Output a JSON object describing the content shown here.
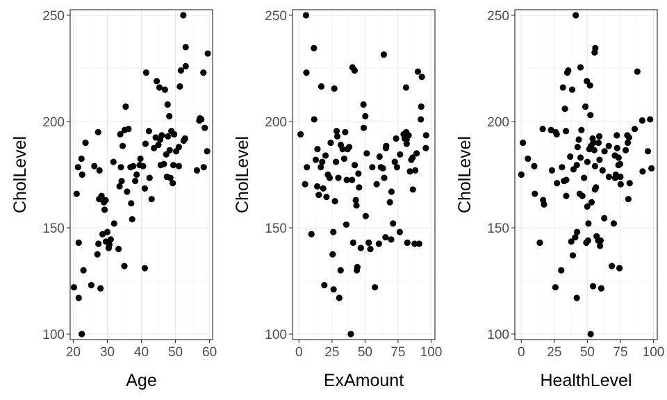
{
  "chart_data": [
    {
      "type": "scatter",
      "xlabel": "Age",
      "ylabel": "CholLevel",
      "xlim": [
        19.1,
        60.9
      ],
      "ylim": [
        97.4,
        252.6
      ],
      "xticks": [
        "20",
        "30",
        "40",
        "50",
        "60"
      ],
      "yticks": [
        "100",
        "150",
        "200",
        "250"
      ],
      "grid": true,
      "points": [
        [
          20.2,
          122.0
        ],
        [
          21.6,
          117.0
        ],
        [
          21.0,
          166.0
        ],
        [
          21.4,
          178.5
        ],
        [
          21.6,
          143.0
        ],
        [
          22.5,
          100.0
        ],
        [
          22.4,
          182.5
        ],
        [
          22.6,
          175.0
        ],
        [
          23.0,
          130.0
        ],
        [
          23.6,
          190.0
        ],
        [
          25.3,
          123.0
        ],
        [
          26.2,
          179.0
        ],
        [
          27.1,
          137.5
        ],
        [
          27.4,
          142.5
        ],
        [
          27.6,
          163.5
        ],
        [
          27.3,
          195.0
        ],
        [
          27.7,
          177.0
        ],
        [
          28.0,
          121.5
        ],
        [
          28.3,
          165.0
        ],
        [
          28.6,
          147.0
        ],
        [
          29.0,
          162.0
        ],
        [
          29.2,
          158.5
        ],
        [
          29.5,
          163.0
        ],
        [
          29.6,
          143.5
        ],
        [
          30.0,
          148.0
        ],
        [
          30.4,
          140.5
        ],
        [
          30.6,
          142.0
        ],
        [
          31.0,
          144.5
        ],
        [
          31.8,
          181.0
        ],
        [
          32.0,
          152.0
        ],
        [
          33.3,
          140.0
        ],
        [
          33.8,
          194.0
        ],
        [
          33.6,
          169.5
        ],
        [
          34.0,
          178.5
        ],
        [
          34.2,
          172.0
        ],
        [
          34.5,
          188.5
        ],
        [
          35.0,
          132.0
        ],
        [
          35.1,
          196.0
        ],
        [
          35.4,
          207.0
        ],
        [
          35.8,
          167.0
        ],
        [
          36.2,
          196.5
        ],
        [
          36.8,
          178.5
        ],
        [
          37.0,
          161.5
        ],
        [
          37.3,
          154.0
        ],
        [
          37.6,
          179.0
        ],
        [
          38.2,
          172.0
        ],
        [
          38.6,
          175.0
        ],
        [
          39.5,
          179.5
        ],
        [
          39.7,
          182.5
        ],
        [
          40.5,
          179.0
        ],
        [
          41.0,
          131.0
        ],
        [
          41.0,
          168.5
        ],
        [
          41.2,
          189.5
        ],
        [
          41.4,
          223.0
        ],
        [
          42.4,
          173.5
        ],
        [
          42.2,
          195.5
        ],
        [
          43.0,
          163.5
        ],
        [
          43.7,
          187.5
        ],
        [
          44.2,
          192.5
        ],
        [
          44.5,
          219.0
        ],
        [
          45.0,
          189.0
        ],
        [
          45.3,
          216.0
        ],
        [
          45.5,
          191.5
        ],
        [
          45.7,
          179.5
        ],
        [
          46.0,
          193.5
        ],
        [
          46.6,
          180.0
        ],
        [
          46.9,
          215.0
        ],
        [
          47.3,
          184.5
        ],
        [
          47.5,
          174.0
        ],
        [
          47.7,
          208.0
        ],
        [
          47.8,
          193.0
        ],
        [
          48.2,
          202.5
        ],
        [
          48.3,
          186.5
        ],
        [
          48.5,
          173.5
        ],
        [
          48.8,
          195.5
        ],
        [
          49.2,
          171.0
        ],
        [
          49.4,
          179.5
        ],
        [
          49.6,
          194.0
        ],
        [
          50.2,
          186.0
        ],
        [
          51.0,
          179.0
        ],
        [
          51.0,
          188.0
        ],
        [
          51.3,
          216.5
        ],
        [
          51.6,
          224.0
        ],
        [
          52.3,
          250.0
        ],
        [
          52.4,
          191.0
        ],
        [
          52.8,
          192.0
        ],
        [
          53.0,
          226.0
        ],
        [
          53.0,
          235.0
        ],
        [
          56.3,
          177.0
        ],
        [
          57.0,
          200.5
        ],
        [
          57.2,
          201.5
        ],
        [
          57.6,
          201.0
        ],
        [
          58.2,
          223.0
        ],
        [
          58.3,
          178.5
        ],
        [
          58.6,
          197.0
        ],
        [
          59.3,
          186.0
        ],
        [
          59.5,
          232.0
        ]
      ]
    },
    {
      "type": "scatter",
      "xlabel": "ExAmount",
      "ylabel": "CholLevel",
      "xlim": [
        -4.9,
        102.9
      ],
      "ylim": [
        97.4,
        252.6
      ],
      "xticks": [
        "0",
        "25",
        "50",
        "75",
        "100"
      ],
      "yticks": [
        "100",
        "150",
        "200",
        "250"
      ],
      "grid": true,
      "points": [
        [
          1.2,
          194.0
        ],
        [
          4.6,
          170.5
        ],
        [
          5.3,
          250.0
        ],
        [
          5.6,
          223.0
        ],
        [
          6.0,
          178.5
        ],
        [
          9.4,
          147.0
        ],
        [
          11.3,
          234.5
        ],
        [
          11.5,
          201.0
        ],
        [
          12.7,
          182.0
        ],
        [
          13.8,
          169.5
        ],
        [
          14.0,
          187.0
        ],
        [
          15.0,
          165.5
        ],
        [
          16.5,
          178.5
        ],
        [
          16.9,
          216.5
        ],
        [
          17.6,
          181.0
        ],
        [
          18.3,
          168.5
        ],
        [
          19.2,
          123.0
        ],
        [
          20.1,
          184.0
        ],
        [
          20.8,
          164.5
        ],
        [
          21.9,
          175.0
        ],
        [
          23.2,
          173.5
        ],
        [
          24.0,
          190.0
        ],
        [
          25.5,
          137.5
        ],
        [
          26.0,
          148.0
        ],
        [
          26.2,
          121.0
        ],
        [
          26.7,
          215.5
        ],
        [
          27.2,
          162.5
        ],
        [
          28.0,
          181.0
        ],
        [
          28.5,
          195.5
        ],
        [
          29.0,
          193.0
        ],
        [
          29.8,
          173.5
        ],
        [
          30.5,
          117.0
        ],
        [
          31.5,
          130.0
        ],
        [
          31.6,
          189.0
        ],
        [
          33.0,
          187.0
        ],
        [
          34.2,
          182.5
        ],
        [
          35.0,
          195.0
        ],
        [
          35.8,
          151.5
        ],
        [
          36.2,
          172.5
        ],
        [
          36.8,
          187.0
        ],
        [
          38.0,
          188.0
        ],
        [
          39.2,
          100.0
        ],
        [
          40.2,
          172.5
        ],
        [
          40.5,
          225.5
        ],
        [
          41.0,
          143.0
        ],
        [
          42.1,
          224.0
        ],
        [
          42.2,
          179.5
        ],
        [
          43.0,
          163.0
        ],
        [
          43.5,
          160.5
        ],
        [
          43.8,
          130.0
        ],
        [
          44.2,
          131.5
        ],
        [
          45.0,
          175.5
        ],
        [
          45.5,
          169.0
        ],
        [
          46.8,
          140.5
        ],
        [
          48.8,
          208.0
        ],
        [
          49.0,
          197.0
        ],
        [
          50.2,
          202.5
        ],
        [
          50.5,
          155.5
        ],
        [
          51.3,
          185.0
        ],
        [
          52.8,
          143.0
        ],
        [
          54.0,
          140.0
        ],
        [
          55.5,
          178.5
        ],
        [
          57.5,
          122.0
        ],
        [
          58.8,
          170.5
        ],
        [
          60.5,
          142.5
        ],
        [
          61.0,
          183.5
        ],
        [
          62.0,
          178.5
        ],
        [
          63.5,
          178.0
        ],
        [
          64.2,
          231.5
        ],
        [
          64.5,
          173.5
        ],
        [
          65.5,
          145.5
        ],
        [
          65.8,
          187.5
        ],
        [
          66.0,
          188.5
        ],
        [
          68.8,
          162.0
        ],
        [
          69.8,
          144.5
        ],
        [
          70.0,
          167.0
        ],
        [
          71.2,
          152.0
        ],
        [
          72.5,
          181.0
        ],
        [
          73.5,
          192.0
        ],
        [
          74.2,
          178.5
        ],
        [
          76.3,
          148.0
        ],
        [
          76.5,
          184.5
        ],
        [
          79.2,
          194.0
        ],
        [
          80.0,
          192.0
        ],
        [
          81.0,
          216.0
        ],
        [
          81.2,
          195.0
        ],
        [
          81.5,
          191.5
        ],
        [
          81.5,
          189.5
        ],
        [
          82.0,
          143.0
        ],
        [
          83.0,
          193.5
        ],
        [
          84.0,
          176.5
        ],
        [
          85.0,
          182.0
        ],
        [
          86.0,
          183.0
        ],
        [
          86.2,
          168.0
        ],
        [
          87.5,
          142.5
        ],
        [
          88.0,
          177.0
        ],
        [
          89.0,
          185.0
        ],
        [
          90.0,
          223.5
        ],
        [
          91.0,
          142.5
        ],
        [
          92.2,
          201.0
        ],
        [
          92.5,
          207.0
        ],
        [
          93.0,
          221.0
        ],
        [
          96.0,
          187.5
        ],
        [
          96.2,
          193.5
        ]
      ]
    },
    {
      "type": "scatter",
      "xlabel": "HealthLevel",
      "ylabel": "CholLevel",
      "xlim": [
        -4.9,
        102.9
      ],
      "ylim": [
        97.4,
        252.6
      ],
      "xticks": [
        "0",
        "25",
        "50",
        "75",
        "100"
      ],
      "yticks": [
        "100",
        "150",
        "200",
        "250"
      ],
      "grid": true,
      "points": [
        [
          0.0,
          175.0
        ],
        [
          1.2,
          190.0
        ],
        [
          5.0,
          182.5
        ],
        [
          9.8,
          179.0
        ],
        [
          10.2,
          166.0
        ],
        [
          14.0,
          143.0
        ],
        [
          16.2,
          196.5
        ],
        [
          16.5,
          163.0
        ],
        [
          17.2,
          161.0
        ],
        [
          22.5,
          196.0
        ],
        [
          23.2,
          177.0
        ],
        [
          25.8,
          122.0
        ],
        [
          26.0,
          195.0
        ],
        [
          26.8,
          194.0
        ],
        [
          27.0,
          171.0
        ],
        [
          30.2,
          130.0
        ],
        [
          30.8,
          178.5
        ],
        [
          31.5,
          216.0
        ],
        [
          32.3,
          172.0
        ],
        [
          33.0,
          206.0
        ],
        [
          33.8,
          195.5
        ],
        [
          34.0,
          172.5
        ],
        [
          34.0,
          165.0
        ],
        [
          34.8,
          223.0
        ],
        [
          35.5,
          224.0
        ],
        [
          37.0,
          183.5
        ],
        [
          37.8,
          143.5
        ],
        [
          38.5,
          215.0
        ],
        [
          39.0,
          137.0
        ],
        [
          39.5,
          177.5
        ],
        [
          40.8,
          145.5
        ],
        [
          41.2,
          250.0
        ],
        [
          42.0,
          117.0
        ],
        [
          42.0,
          179.5
        ],
        [
          42.2,
          148.0
        ],
        [
          42.6,
          188.0
        ],
        [
          43.5,
          191.5
        ],
        [
          44.2,
          166.0
        ],
        [
          44.8,
          225.5
        ],
        [
          44.8,
          183.0
        ],
        [
          45.5,
          196.0
        ],
        [
          46.2,
          165.0
        ],
        [
          47.5,
          173.5
        ],
        [
          48.5,
          207.0
        ],
        [
          49.2,
          143.0
        ],
        [
          49.6,
          219.0
        ],
        [
          49.9,
          160.0
        ],
        [
          50.0,
          181.0
        ],
        [
          50.5,
          144.0
        ],
        [
          50.8,
          152.0
        ],
        [
          51.5,
          187.0
        ],
        [
          52.0,
          217.0
        ],
        [
          52.3,
          203.0
        ],
        [
          52.5,
          100.0
        ],
        [
          52.8,
          188.5
        ],
        [
          53.2,
          162.0
        ],
        [
          54.0,
          192.0
        ],
        [
          54.3,
          122.5
        ],
        [
          54.5,
          190.0
        ],
        [
          55.2,
          186.5
        ],
        [
          55.5,
          232.5
        ],
        [
          55.7,
          168.0
        ],
        [
          55.8,
          179.0
        ],
        [
          56.0,
          234.5
        ],
        [
          56.5,
          169.0
        ],
        [
          57.0,
          146.0
        ],
        [
          58.2,
          144.0
        ],
        [
          58.5,
          190.0
        ],
        [
          59.0,
          193.0
        ],
        [
          59.2,
          182.0
        ],
        [
          59.6,
          141.5
        ],
        [
          60.0,
          144.0
        ],
        [
          60.5,
          121.5
        ],
        [
          61.5,
          177.0
        ],
        [
          62.8,
          154.5
        ],
        [
          63.0,
          186.0
        ],
        [
          66.2,
          188.5
        ],
        [
          66.3,
          174.0
        ],
        [
          68.5,
          132.0
        ],
        [
          70.0,
          152.0
        ],
        [
          70.8,
          184.0
        ],
        [
          71.0,
          173.5
        ],
        [
          71.5,
          175.0
        ],
        [
          72.0,
          174.0
        ],
        [
          72.3,
          193.5
        ],
        [
          72.5,
          187.5
        ],
        [
          73.5,
          179.5
        ],
        [
          73.6,
          183.0
        ],
        [
          74.3,
          131.0
        ],
        [
          74.7,
          180.0
        ],
        [
          75.0,
          174.0
        ],
        [
          75.2,
          170.5
        ],
        [
          79.0,
          186.5
        ],
        [
          80.2,
          193.5
        ],
        [
          80.6,
          190.0
        ],
        [
          81.0,
          163.5
        ],
        [
          81.5,
          192.5
        ],
        [
          82.0,
          171.0
        ],
        [
          85.8,
          196.5
        ],
        [
          87.8,
          223.5
        ],
        [
          91.5,
          200.5
        ],
        [
          91.8,
          176.5
        ],
        [
          95.8,
          186.0
        ],
        [
          97.5,
          201.0
        ],
        [
          98.5,
          178.0
        ]
      ]
    }
  ]
}
